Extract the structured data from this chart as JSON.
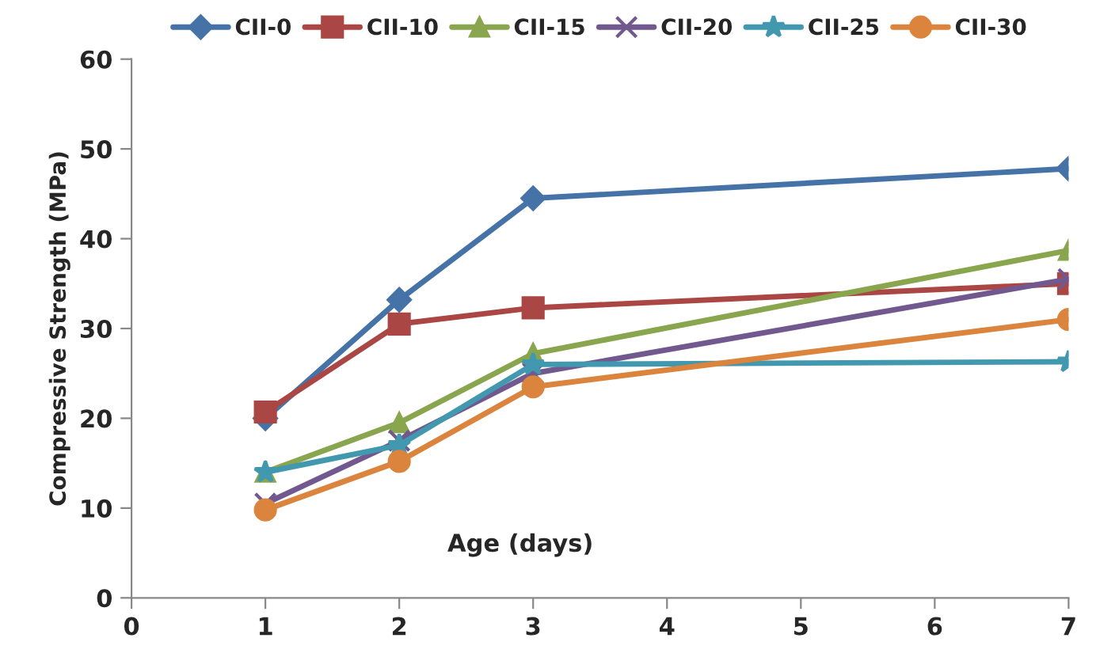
{
  "chart_data": {
    "type": "line",
    "xlabel": "Age (days)",
    "ylabel": "Compressive Strength (MPa)",
    "x": [
      1,
      2,
      3,
      7
    ],
    "series": [
      {
        "name": "CII-0",
        "color": "#4572a7",
        "marker": "diamond",
        "values": [
          20,
          33.2,
          44.5,
          47.8
        ]
      },
      {
        "name": "CII-10",
        "color": "#aa4643",
        "marker": "square",
        "values": [
          20.7,
          30.5,
          32.3,
          35
        ]
      },
      {
        "name": "CII-15",
        "color": "#89a54e",
        "marker": "triangle",
        "values": [
          14,
          19.5,
          27.2,
          38.7
        ]
      },
      {
        "name": "CII-20",
        "color": "#71588f",
        "marker": "cross",
        "values": [
          10.5,
          17.5,
          25,
          35.5
        ]
      },
      {
        "name": "CII-25",
        "color": "#4198af",
        "marker": "star",
        "values": [
          14,
          17,
          26,
          26.3
        ]
      },
      {
        "name": "CII-30",
        "color": "#db843d",
        "marker": "circle",
        "values": [
          9.8,
          15.2,
          23.5,
          31
        ]
      }
    ],
    "xlim": [
      0,
      7
    ],
    "xticks": [
      0,
      1,
      2,
      3,
      4,
      5,
      6,
      7
    ],
    "ylim": [
      0,
      60
    ],
    "yticks": [
      0,
      10,
      20,
      30,
      40,
      50,
      60
    ],
    "grid": false,
    "legend": "top",
    "line_style": "solid"
  }
}
